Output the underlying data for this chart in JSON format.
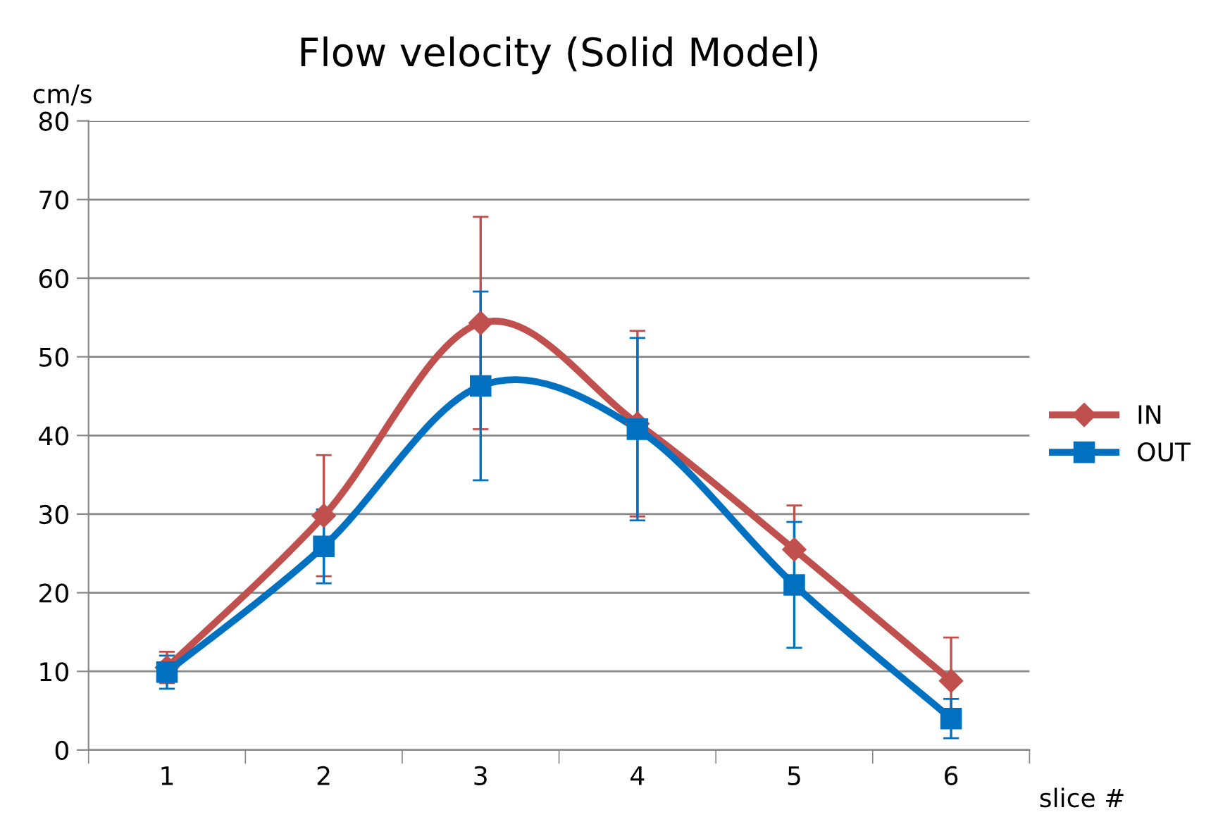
{
  "chart_data": {
    "type": "line",
    "title": "Flow velocity (Solid Model)",
    "ylabel": "cm/s",
    "xlabel": "slice #",
    "categories": [
      "1",
      "2",
      "3",
      "4",
      "5",
      "6"
    ],
    "series": [
      {
        "name": "IN",
        "color": "#c0504d",
        "marker": "diamond",
        "values": [
          10.5,
          29.8,
          54.3,
          41.5,
          25.5,
          8.8
        ],
        "errors": [
          2,
          7.7,
          13.5,
          11.8,
          5.6,
          5.5
        ]
      },
      {
        "name": "OUT",
        "color": "#0070c0",
        "marker": "square",
        "values": [
          9.9,
          25.9,
          46.3,
          40.8,
          21,
          4
        ],
        "errors": [
          2.1,
          4.7,
          12,
          11.6,
          8,
          2.5
        ]
      }
    ],
    "ylim": [
      0,
      80
    ],
    "yticks": [
      0,
      10,
      20,
      30,
      40,
      50,
      60,
      70,
      80
    ],
    "grid": "y",
    "legend": "right",
    "line_style": "solid"
  }
}
